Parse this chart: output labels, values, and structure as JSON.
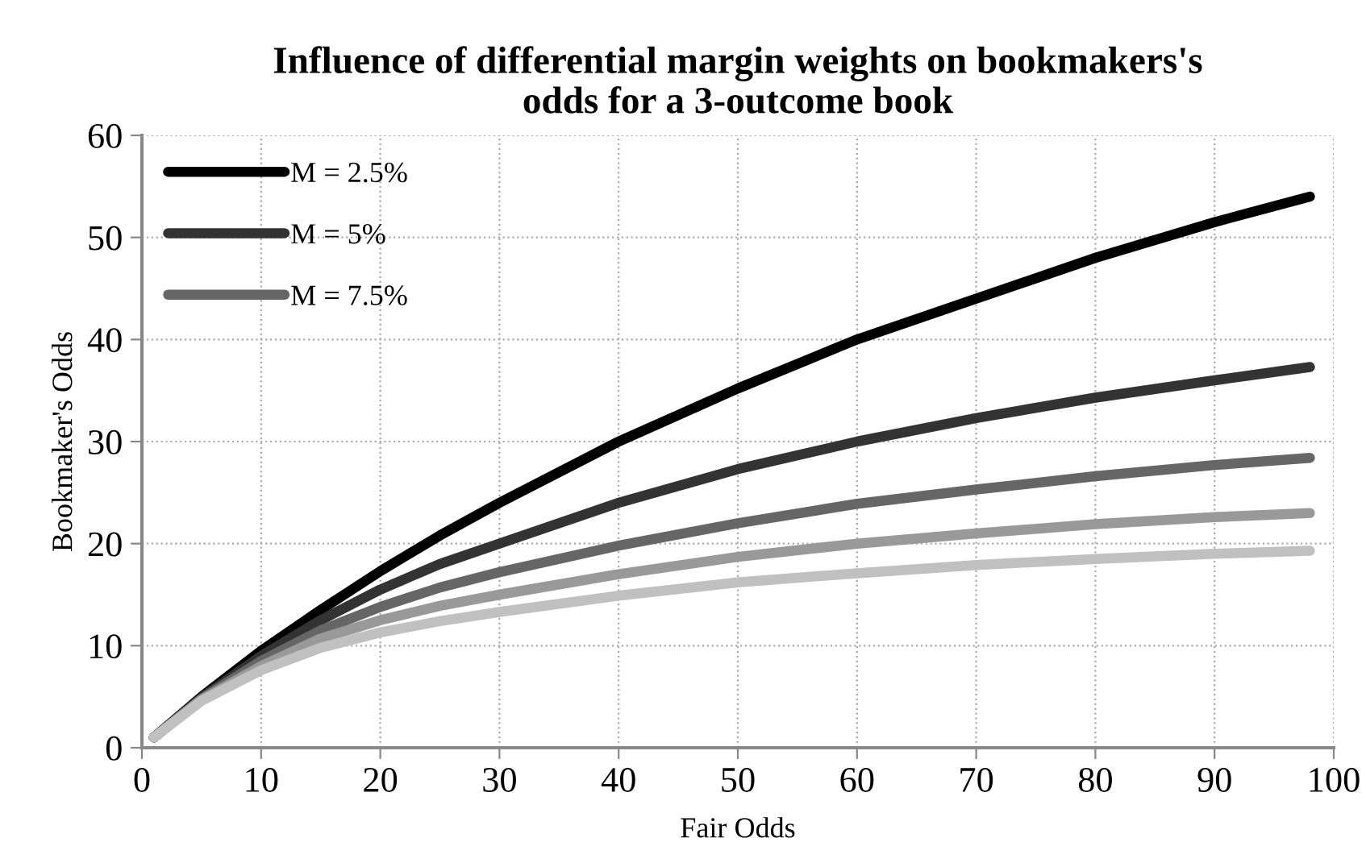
{
  "chart_data": {
    "type": "line",
    "title": "Influence of differential margin weights on bookmakers's\nodds for a 3-outcome book",
    "xlabel": "Fair Odds",
    "ylabel": "Bookmaker's Odds",
    "x": [
      1,
      5,
      10,
      15,
      20,
      25,
      30,
      40,
      50,
      60,
      70,
      80,
      90,
      98
    ],
    "series": [
      {
        "name": "M = 2.5%",
        "color": "#000000",
        "values": [
          1,
          5,
          9.5,
          13.5,
          17.3,
          20.8,
          24,
          30,
          35.2,
          40,
          44,
          48,
          51.5,
          54
        ]
      },
      {
        "name": "M = 5%",
        "color": "#333333",
        "values": [
          1,
          4.9,
          9,
          12.5,
          15.5,
          18,
          20,
          24,
          27.3,
          30,
          32.3,
          34.3,
          36,
          37.3
        ]
      },
      {
        "name": "M = 7.5%",
        "color": "#666666",
        "values": [
          1,
          4.8,
          8.5,
          11.5,
          13.8,
          15.7,
          17.2,
          19.8,
          22,
          23.9,
          25.3,
          26.6,
          27.7,
          28.4
        ]
      },
      {
        "color": "#999999",
        "values": [
          1,
          4.7,
          8,
          10.7,
          12.5,
          13.9,
          15,
          17,
          18.7,
          20,
          21,
          21.9,
          22.6,
          23
        ]
      },
      {
        "color": "#c0c0c0",
        "values": [
          1,
          4.6,
          7.6,
          9.8,
          11.3,
          12.4,
          13.3,
          14.9,
          16.2,
          17.1,
          17.9,
          18.5,
          19,
          19.3
        ]
      }
    ],
    "xlim": [
      0,
      100
    ],
    "xticks": [
      0,
      10,
      20,
      30,
      40,
      50,
      60,
      70,
      80,
      90,
      100
    ],
    "ylim": [
      0,
      60
    ],
    "yticks": [
      0,
      10,
      20,
      30,
      40,
      50,
      60
    ],
    "grid": true,
    "legend": "top left",
    "marker": "none",
    "line_style": "solid"
  }
}
